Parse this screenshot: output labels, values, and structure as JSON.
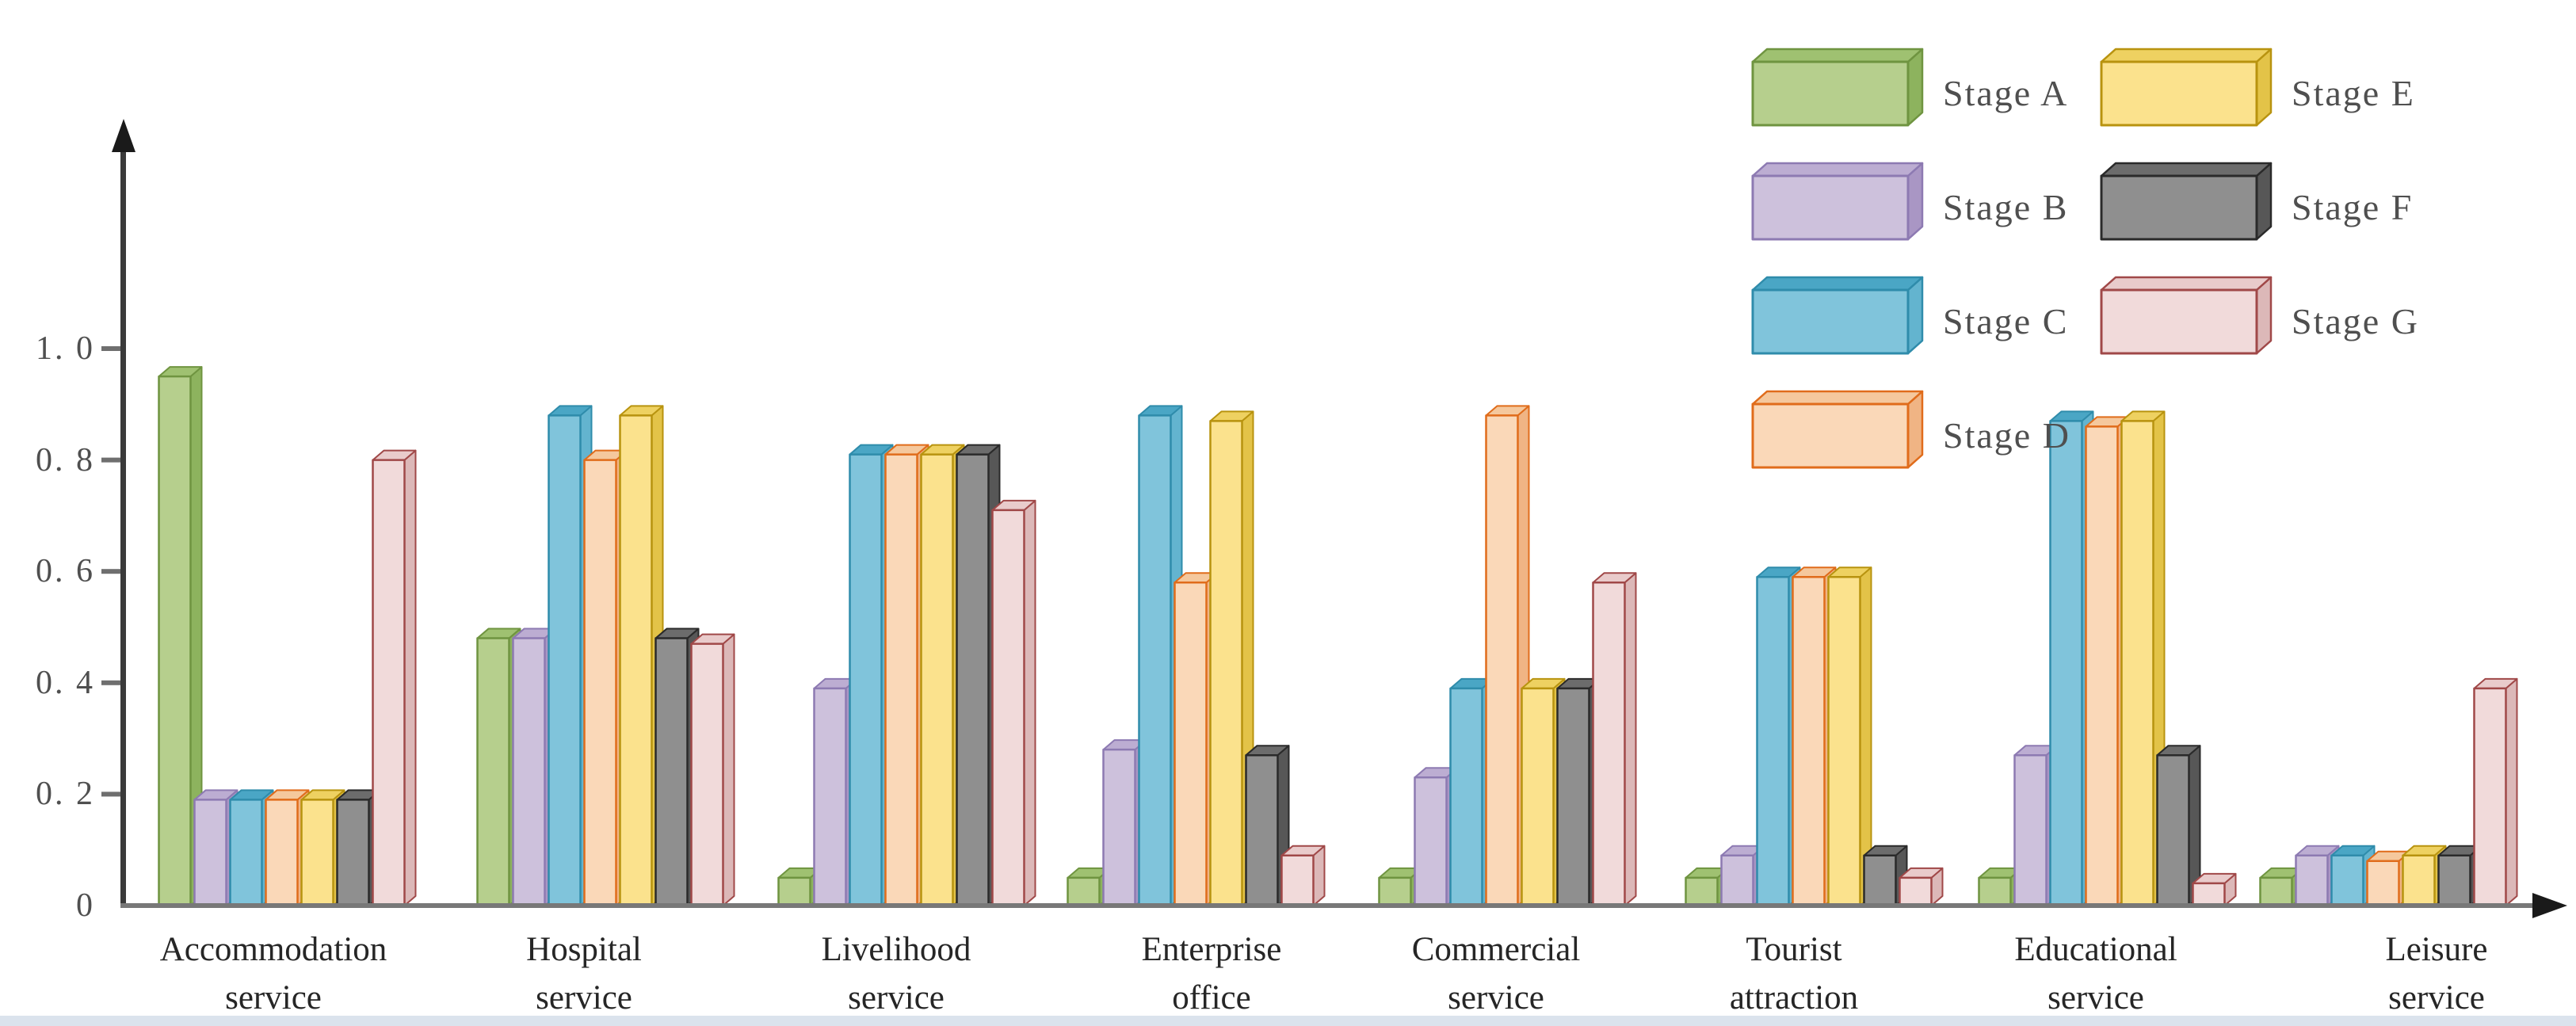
{
  "figure": {
    "background": "#ffffff",
    "bottom_strip_color": "#dbe3ed",
    "y_axis_color": "#3a3a3a",
    "x_axis_color": "#787878",
    "tick_color": "#6f6f6f",
    "arrow_color": "#1a1a1a"
  },
  "y_axis": {
    "ticks": [
      {
        "label": "1. 0",
        "value": 1.0
      },
      {
        "label": "0. 8",
        "value": 0.8
      },
      {
        "label": "0. 6",
        "value": 0.6
      },
      {
        "label": "0. 4",
        "value": 0.4
      },
      {
        "label": "0. 2",
        "value": 0.2
      },
      {
        "label": "0",
        "value": 0
      }
    ]
  },
  "legend": {
    "columns": [
      [
        "Stage A",
        "Stage B",
        "Stage C",
        "Stage D"
      ],
      [
        "Stage E",
        "Stage F",
        "Stage G"
      ]
    ]
  },
  "chart_data": {
    "type": "bar",
    "title": "",
    "xlabel": "",
    "ylabel": "",
    "ylim": [
      0,
      1.0
    ],
    "grid": false,
    "legend_position": "top-right",
    "categories": [
      "Accommodation service",
      "Hospital service",
      "Livelihood service",
      "Enterprise office",
      "Commercial service",
      "Tourist attraction",
      "Educational service",
      "Leisure service"
    ],
    "series": [
      {
        "name": "Stage A",
        "colors": {
          "fill": "#b6cf8d",
          "top": "#9fc171",
          "side": "#8db35e",
          "border": "#6f9440"
        },
        "values": [
          0.95,
          0.48,
          0.05,
          0.05,
          0.05,
          0.05,
          0.05,
          0.05
        ]
      },
      {
        "name": "Stage B",
        "colors": {
          "fill": "#cdc1dc",
          "top": "#bcadd2",
          "side": "#a996c4",
          "border": "#8d7ab2"
        },
        "values": [
          0.19,
          0.48,
          0.39,
          0.28,
          0.23,
          0.09,
          0.27,
          0.09
        ]
      },
      {
        "name": "Stage C",
        "colors": {
          "fill": "#80c4db",
          "top": "#4aa6c5",
          "side": "#63b4cf",
          "border": "#2f8cab"
        },
        "values": [
          0.19,
          0.88,
          0.81,
          0.88,
          0.39,
          0.59,
          0.87,
          0.09
        ]
      },
      {
        "name": "Stage D",
        "colors": {
          "fill": "#fad8b8",
          "top": "#f5c89d",
          "side": "#f0b484",
          "border": "#e06c1b"
        },
        "values": [
          0.19,
          0.8,
          0.81,
          0.58,
          0.88,
          0.59,
          0.86,
          0.08
        ]
      },
      {
        "name": "Stage E",
        "colors": {
          "fill": "#fbe28d",
          "top": "#eed161",
          "side": "#e3c348",
          "border": "#b8930f"
        },
        "values": [
          0.19,
          0.88,
          0.81,
          0.87,
          0.39,
          0.59,
          0.87,
          0.09
        ]
      },
      {
        "name": "Stage F",
        "colors": {
          "fill": "#8f8f8f",
          "top": "#6c6c6c",
          "side": "#575757",
          "border": "#2a2a2a"
        },
        "values": [
          0.19,
          0.48,
          0.81,
          0.27,
          0.39,
          0.09,
          0.27,
          0.09
        ]
      },
      {
        "name": "Stage G",
        "colors": {
          "fill": "#f1dada",
          "top": "#e9cbcb",
          "side": "#dcb8b8",
          "border": "#a04848"
        },
        "values": [
          0.8,
          0.47,
          0.71,
          0.09,
          0.58,
          0.05,
          0.04,
          0.39
        ]
      }
    ]
  }
}
